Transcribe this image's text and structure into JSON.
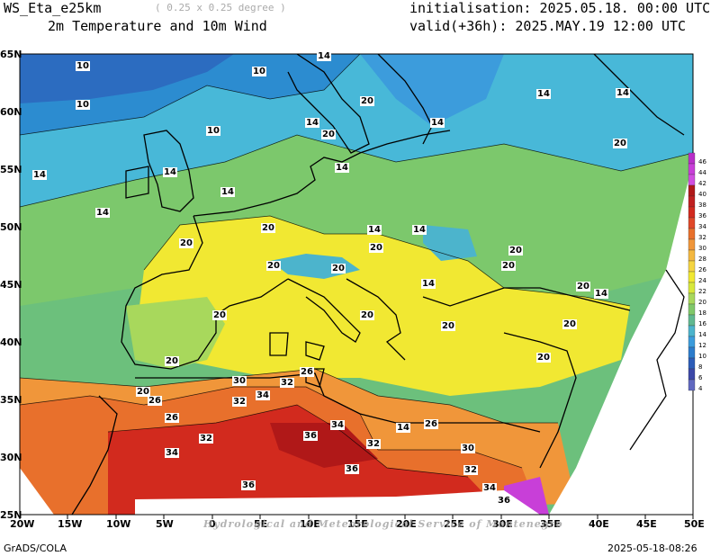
{
  "header": {
    "model": "WS_Eta_e25km",
    "resolution": "( 0.25 x 0.25 degree )",
    "field": "2m Temperature and 10m Wind",
    "init": "initialisation: 2025.05.18. 00:00 UTC",
    "valid": "valid(+36h): 2025.MAY.19 12:00 UTC"
  },
  "footer": {
    "software": "GrADS/COLA",
    "timestamp": "2025-05-18-08:26",
    "watermark": "Hydrological and Meteorological Service of Montenegro"
  },
  "axes": {
    "lon": [
      "20W",
      "15W",
      "10W",
      "5W",
      "0",
      "5E",
      "10E",
      "15E",
      "20E",
      "25E",
      "30E",
      "35E",
      "40E",
      "45E",
      "50E"
    ],
    "lat": [
      "65N",
      "60N",
      "55N",
      "50N",
      "45N",
      "40N",
      "35N",
      "30N",
      "25N"
    ]
  },
  "colorbar": {
    "levels": [
      "46",
      "44",
      "42",
      "40",
      "38",
      "36",
      "34",
      "32",
      "30",
      "28",
      "26",
      "24",
      "22",
      "20",
      "18",
      "16",
      "14",
      "12",
      "10",
      "8",
      "6",
      "4"
    ],
    "colors": [
      "#b82fc8",
      "#c83fd8",
      "#d04fe0",
      "#b01818",
      "#c02020",
      "#d22a1e",
      "#e04828",
      "#e8702c",
      "#f0963a",
      "#f4b840",
      "#f5d542",
      "#f1e832",
      "#d8e83c",
      "#a8d85c",
      "#80c86a",
      "#60b890",
      "#4cb4cc",
      "#3c9cdc",
      "#2c7ccc",
      "#2c5cb8",
      "#3c48a8",
      "#6068c0"
    ]
  },
  "contour_labels": [
    "10",
    "10",
    "10",
    "10",
    "14",
    "14",
    "14",
    "14",
    "14",
    "14",
    "14",
    "14",
    "14",
    "14",
    "14",
    "20",
    "20",
    "20",
    "20",
    "20",
    "20",
    "20",
    "20",
    "20",
    "20",
    "20",
    "20",
    "20",
    "26",
    "26",
    "26",
    "26",
    "30",
    "30",
    "32",
    "32",
    "32",
    "32",
    "32",
    "34",
    "34",
    "34",
    "34",
    "36",
    "36",
    "36",
    "36",
    "14",
    "20",
    "14",
    "20",
    "20",
    "20",
    "20",
    "14",
    "14"
  ]
}
